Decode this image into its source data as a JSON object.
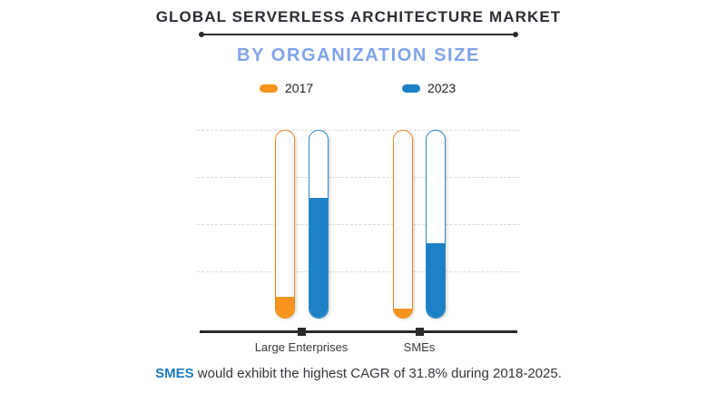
{
  "header": {
    "title": "GLOBAL SERVERLESS ARCHITECTURE MARKET",
    "subtitle": "BY ORGANIZATION SIZE"
  },
  "legend": [
    {
      "label": "2017"
    },
    {
      "label": "2023"
    }
  ],
  "chart_data": {
    "type": "bar",
    "variant": "thermometer-tube-columns",
    "title": "Global Serverless Architecture Market by Organization Size",
    "categories": [
      "Large Enterprises",
      "SMEs"
    ],
    "series": [
      {
        "name": "2017",
        "color": "#f7941d",
        "outline_color": "#e8871b",
        "values": [
          11,
          5
        ]
      },
      {
        "name": "2023",
        "color": "#1e81c6",
        "outline_color": "#2e86c1",
        "values": [
          64,
          40
        ]
      }
    ],
    "ylim": [
      0,
      100
    ],
    "value_note": "percent of tube height, estimated from gridlines (no numeric axis shown)",
    "gridlines_visible": 4,
    "grid_style": "dashed",
    "legend_position": "top",
    "xlabel": "",
    "ylabel": ""
  },
  "footer": {
    "highlight": "SMES",
    "text": " would exhibit the highest CAGR of 31.8% during 2018-2025."
  },
  "colors": {
    "title": "#2b2b33",
    "subtitle": "#7fa3e9",
    "accent_orange": "#f7941d",
    "accent_blue": "#1e81c6",
    "highlight": "#1b78be",
    "footer_text": "#34343c",
    "grid": "#d9d9d9",
    "axis": "#2b2b2b"
  }
}
